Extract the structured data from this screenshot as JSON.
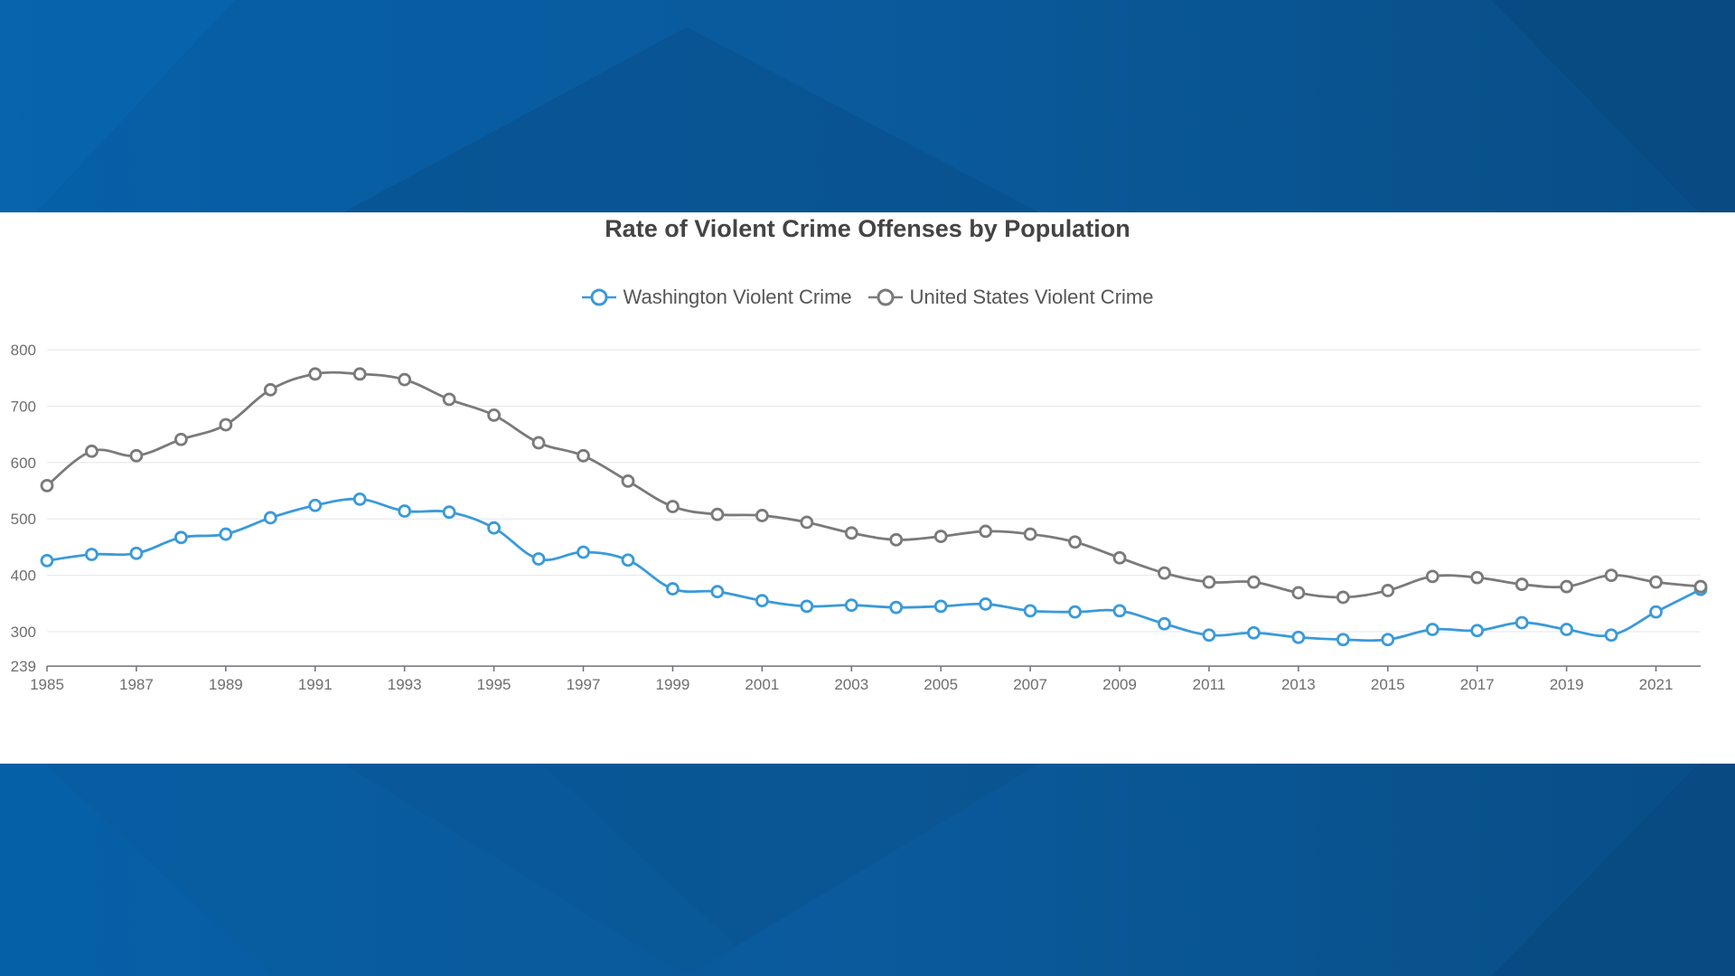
{
  "chart_data": {
    "type": "line",
    "title": "Rate of Violent Crime Offenses by Population",
    "xlabel": "",
    "ylabel": "",
    "x": [
      1985,
      1986,
      1987,
      1988,
      1989,
      1990,
      1991,
      1992,
      1993,
      1994,
      1995,
      1996,
      1997,
      1998,
      1999,
      2000,
      2001,
      2002,
      2003,
      2004,
      2005,
      2006,
      2007,
      2008,
      2009,
      2010,
      2011,
      2012,
      2013,
      2014,
      2015,
      2016,
      2017,
      2018,
      2019,
      2020,
      2021,
      2022
    ],
    "x_tick_labels": [
      "1985",
      "1987",
      "1989",
      "1991",
      "1993",
      "1995",
      "1997",
      "1999",
      "2001",
      "2003",
      "2005",
      "2007",
      "2009",
      "2011",
      "2013",
      "2015",
      "2017",
      "2019",
      "2021"
    ],
    "y_tick_labels": [
      "239",
      "300",
      "400",
      "500",
      "600",
      "700",
      "800"
    ],
    "ylim": [
      239,
      800
    ],
    "grid": true,
    "legend_position": "top-center",
    "series": [
      {
        "name": "Washington Violent Crime",
        "color": "#3a9ad9",
        "values": [
          426,
          437,
          439,
          467,
          473,
          502,
          524,
          535,
          514,
          512,
          484,
          429,
          441,
          427,
          376,
          371,
          355,
          345,
          347,
          343,
          345,
          349,
          337,
          335,
          337,
          314,
          294,
          298,
          290,
          286,
          286,
          304,
          302,
          316,
          304,
          294,
          335,
          375
        ]
      },
      {
        "name": "United States Violent Crime",
        "color": "#7a7a7a",
        "values": [
          559,
          620,
          612,
          641,
          667,
          729,
          757,
          757,
          747,
          712,
          684,
          635,
          612,
          567,
          522,
          508,
          506,
          494,
          475,
          463,
          469,
          478,
          473,
          459,
          431,
          404,
          388,
          388,
          369,
          361,
          373,
          398,
          396,
          384,
          380,
          400,
          388,
          380
        ]
      }
    ]
  }
}
